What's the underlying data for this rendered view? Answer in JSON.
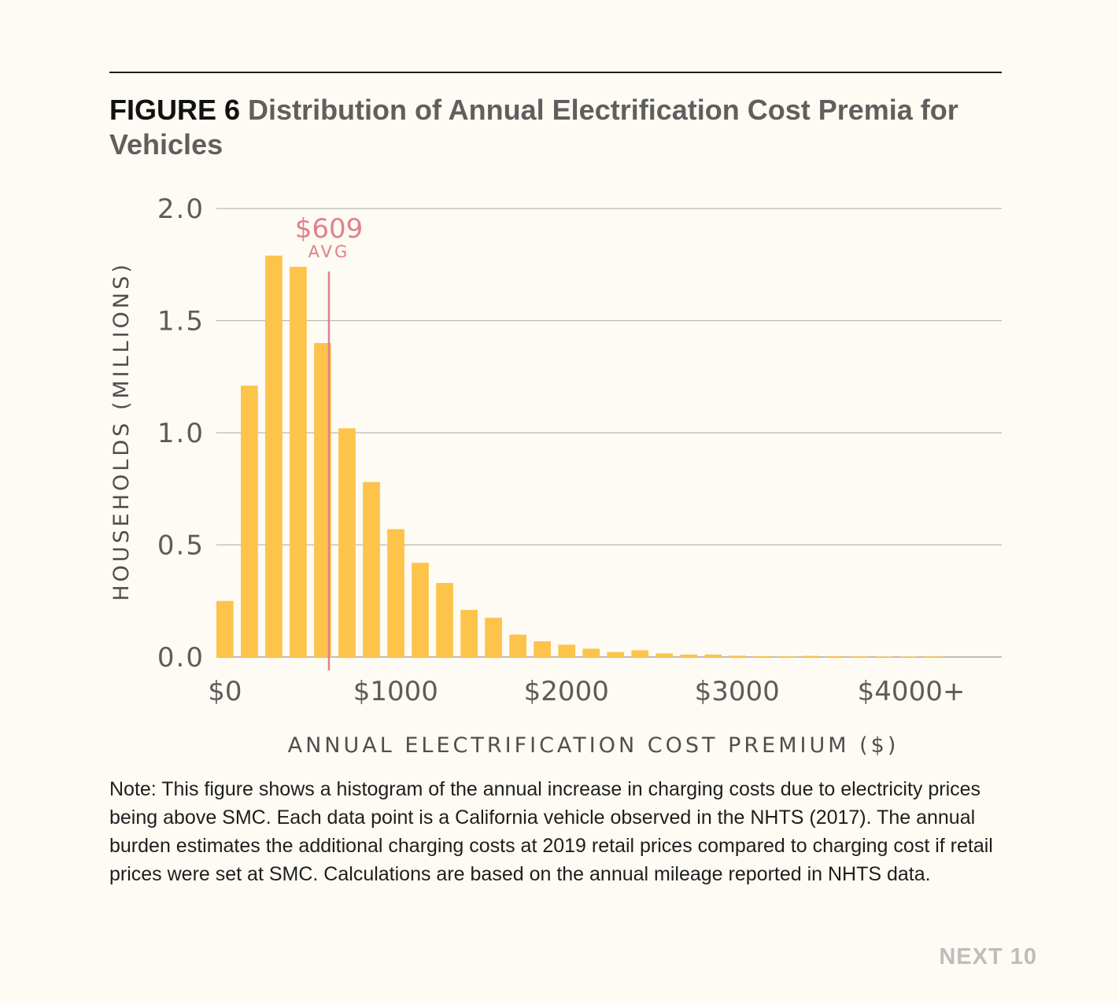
{
  "figure": {
    "number": "FIGURE 6",
    "title": "Distribution of Annual Electrification Cost Premia for Vehicles",
    "note": "Note: This figure shows a histogram of the annual increase in charging costs due to electricity prices being above SMC. Each data point is a California vehicle observed in the NHTS (2017). The annual burden estimates the additional charging costs at 2019 retail prices compared to charging cost if retail prices were set at SMC. Calculations are based on the annual mileage reported in NHTS data."
  },
  "brand": "NEXT 10",
  "chart_data": {
    "type": "bar",
    "title": "Distribution of Annual Electrification Cost Premia for Vehicles",
    "xlabel": "ANNUAL ELECTRIFICATION COST PREMIUM ($)",
    "ylabel": "HOUSEHOLDS (MILLIONS)",
    "ylim": [
      0,
      2.0
    ],
    "xlim": [
      -50,
      4550
    ],
    "grid": true,
    "bar_width": 100,
    "bar_color": "#fdc34b",
    "avg_color": "#e0808c",
    "x_tick_labels": [
      "$0",
      "$1000",
      "$2000",
      "$3000",
      "$4000+"
    ],
    "x_ticks": [
      0,
      1000,
      2000,
      3000,
      4000
    ],
    "y_tick_labels": [
      "0.0",
      "0.5",
      "1.0",
      "1.5",
      "2.0"
    ],
    "y_ticks": [
      0,
      0.5,
      1.0,
      1.5,
      2.0
    ],
    "bin_centers": [
      0,
      143,
      286,
      429,
      572,
      715,
      858,
      1001,
      1144,
      1287,
      1430,
      1573,
      1716,
      1859,
      2002,
      2145,
      2288,
      2431,
      2574,
      2717,
      2860,
      3003,
      3146,
      3289,
      3432,
      3575,
      3718,
      3861,
      4004,
      4147
    ],
    "values": [
      0.25,
      1.21,
      1.79,
      1.74,
      1.4,
      1.02,
      0.78,
      0.57,
      0.42,
      0.33,
      0.21,
      0.175,
      0.1,
      0.07,
      0.055,
      0.037,
      0.022,
      0.03,
      0.016,
      0.011,
      0.011,
      0.006,
      0.004,
      0.003,
      0.005,
      0.004,
      0.003,
      0.002,
      0.002,
      0.003
    ],
    "average": {
      "value": 609,
      "label": "$609",
      "sublabel": "AVG"
    }
  }
}
